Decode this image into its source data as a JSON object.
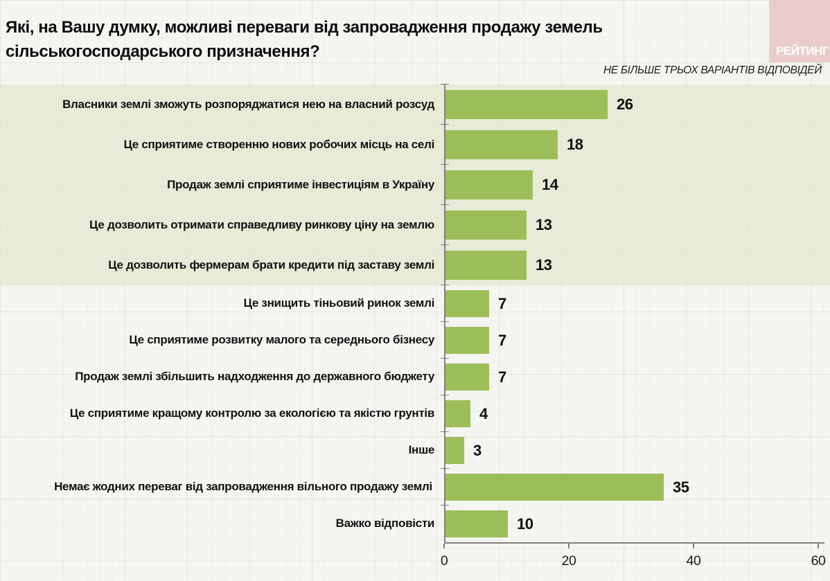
{
  "title": "Які, на Вашу думку, можливі переваги від запровадження продажу земель сільськогосподарського призначення?",
  "subtitle": "НЕ БІЛЬШЕ ТРЬОХ ВАРІАНТІВ ВІДПОВІДЕЙ",
  "logo": {
    "text": "РЕЙТИНГ",
    "bg_color": "#e7c5c3",
    "text_color": "#ffffff"
  },
  "chart_data": {
    "type": "bar",
    "orientation": "horizontal",
    "title": "Які, на Вашу думку, можливі переваги від запровадження продажу земель сільськогосподарського призначення?",
    "subtitle": "НЕ БІЛЬШЕ ТРЬОХ ВАРІАНТІВ ВІДПОВІДЕЙ",
    "categories": [
      "Власники землі зможуть розпоряджатися нею на власний розсуд",
      "Це сприятиме створенню нових робочих місць на селі",
      "Продаж землі сприятиме інвестиціям в Україну",
      "Це дозволить отримати справедливу ринкову ціну на землю",
      "Це дозволить фермерам брати кредити під заставу землі",
      "Це знищить тіньовий ринок землі",
      "Це сприятиме розвитку малого та середнього бізнесу",
      "Продаж землі збільшить надходження до державного бюджету",
      "Це сприятиме кращому контролю за екологією та якістю грунтів",
      "Інше",
      "Немає жодних переваг від запровадження вільного продажу землі",
      "Важко відповісти"
    ],
    "values": [
      26,
      18,
      14,
      13,
      13,
      7,
      7,
      7,
      4,
      3,
      35,
      10
    ],
    "xlabel": "",
    "ylabel": "",
    "xlim": [
      0,
      60
    ],
    "xticks": [
      0,
      20,
      40,
      60
    ],
    "grid": "graph-paper background",
    "legend": "none",
    "bar_color": "#9cbe58",
    "highlight_band_color": "#e9ece0",
    "highlighted_rows": 5,
    "center_wrapped_row_index": 10
  }
}
